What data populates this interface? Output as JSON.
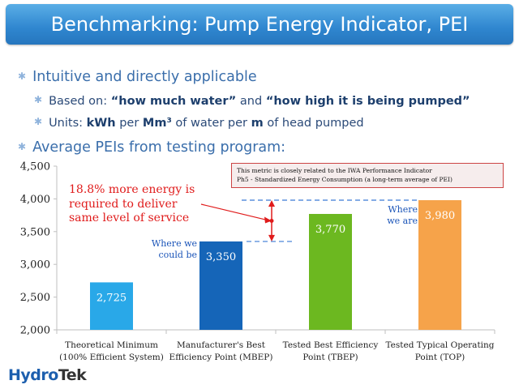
{
  "slide": {
    "title": "Benchmarking:  Pump Energy Indicator, PEI"
  },
  "bullets": {
    "b1": "Intuitive and directly applicable",
    "b2_prefix": "Based on: ",
    "b2_q1": "“how much water”",
    "b2_mid": " and ",
    "b2_q2": "“how high it is being pumped”",
    "b3_prefix": "Units: ",
    "b3_kwh": "kWh",
    "b3_per": " per ",
    "b3_mm3": "Mm³",
    "b3_mid": " of water per ",
    "b3_m": "m",
    "b3_suffix": " of head pumped",
    "b4": "Average PEIs from testing program:"
  },
  "callout": {
    "line1": "This metric is closely related to the IWA Performance Indicator",
    "line2": "Ph5  - Standardized Energy Consumption (a long-term average of PEI)"
  },
  "annotations": {
    "red_line1": "18.8% more energy is",
    "red_line2": "required to deliver",
    "red_line3": "same level of service",
    "where_we_are_1": "Where",
    "where_we_are_2": "we are",
    "where_we_could_1": "Where we",
    "where_we_could_2": "could be"
  },
  "logo": {
    "part1": "Hydro",
    "part2": "Tek"
  },
  "colors": {
    "title_bar": "#2f86cf",
    "red": "#e01b1b",
    "dash": "#3a7bd5"
  },
  "chart_data": {
    "type": "bar",
    "categories": [
      [
        "Theoretical Minimum",
        "(100% Efficient System)"
      ],
      [
        "Manufacturer's Best",
        "Efficiency Point (MBEP)"
      ],
      [
        "Tested Best Efficiency",
        "Point (TBEP)"
      ],
      [
        "Tested Typical Operating",
        "Point (TOP)"
      ]
    ],
    "values": [
      2725,
      3350,
      3770,
      3980
    ],
    "value_labels": [
      "2,725",
      "3,350",
      "3,770",
      "3,980"
    ],
    "bar_colors": [
      "#29a8e8",
      "#1565b8",
      "#6cb820",
      "#f6a34a"
    ],
    "ylim": [
      2000,
      4500
    ],
    "yticks": [
      2000,
      2500,
      3000,
      3500,
      4000,
      4500
    ],
    "ytick_labels": [
      "2,000",
      "2,500",
      "3,000",
      "3,500",
      "4,000",
      "4,500"
    ],
    "grid": false,
    "legend": "none"
  }
}
